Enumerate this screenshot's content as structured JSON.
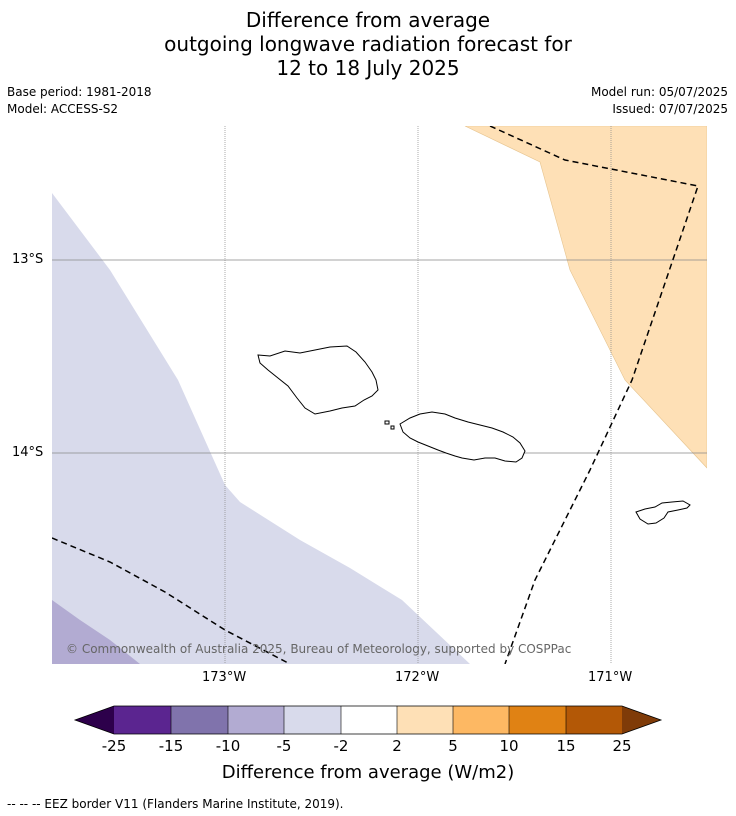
{
  "title": {
    "line1": "Difference from average",
    "line2": "outgoing longwave radiation forecast for",
    "line3": "12 to 18 July 2025"
  },
  "meta_left": {
    "base_period": "Base period: 1981-2018",
    "model": "Model: ACCESS-S2"
  },
  "meta_right": {
    "model_run": "Model run: 05/07/2025",
    "issued": "Issued: 07/07/2025"
  },
  "map": {
    "lat_labels": [
      "13°S",
      "14°S"
    ],
    "lon_labels": [
      "173°W",
      "172°W",
      "171°W"
    ],
    "copyright": "© Commonwealth of Australia 2025, Bureau of Meteorology, supported by COSPPac"
  },
  "colorbar": {
    "labels": [
      "-25",
      "-15",
      "-10",
      "-5",
      "-2",
      "2",
      "5",
      "10",
      "15",
      "25"
    ],
    "colors": [
      "#2d004b",
      "#5b2590",
      "#8073ac",
      "#b2abd2",
      "#d8daeb",
      "#ffffff",
      "#fee0b6",
      "#fdb863",
      "#e08214",
      "#b35806",
      "#7f3b08"
    ],
    "title": "Difference from average (W/m2)"
  },
  "footnote": "--  --  -- EEZ border V11 (Flanders Marine Institute, 2019).",
  "colors": {
    "weak_negative": "#d8daeb",
    "moderate_negative": "#b2abd2",
    "weak_positive": "#fee0b6"
  }
}
